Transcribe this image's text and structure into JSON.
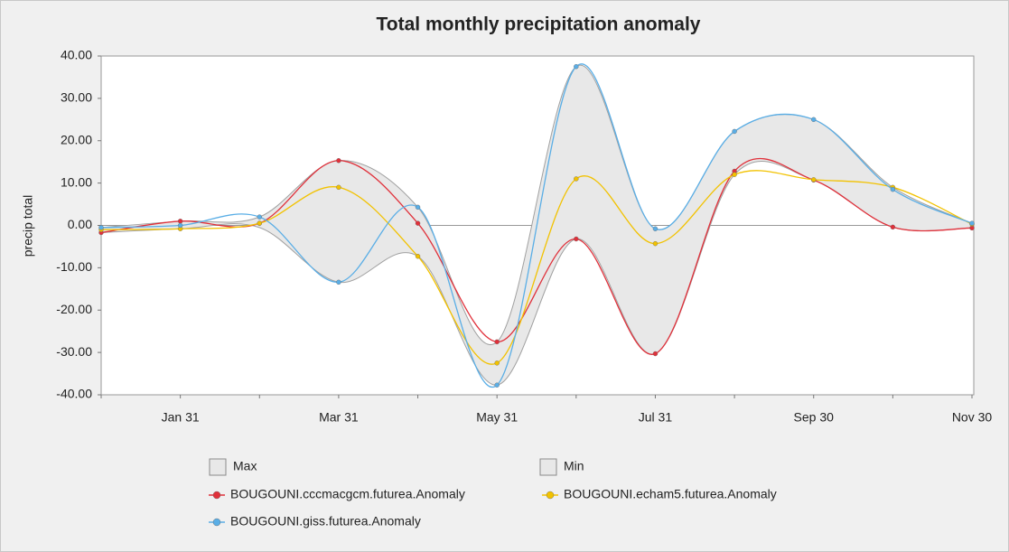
{
  "chart_data": {
    "type": "line",
    "title": "Total monthly precipitation anomaly",
    "y_label": "precip total",
    "categories": [
      null,
      "Jan 31",
      null,
      "Mar 31",
      null,
      "May 31",
      null,
      "Jul 31",
      null,
      "Sep 30",
      null,
      "Nov 30"
    ],
    "ylim": [
      -40,
      40
    ],
    "yticks": [
      {
        "value": -40,
        "label": "-40.00"
      },
      {
        "value": -30,
        "label": "-30.00"
      },
      {
        "value": -20,
        "label": "-20.00"
      },
      {
        "value": -10,
        "label": "-10.00"
      },
      {
        "value": 0,
        "label": "0.00"
      },
      {
        "value": 10,
        "label": "10.00"
      },
      {
        "value": 20,
        "label": "20.00"
      },
      {
        "value": 30,
        "label": "30.00"
      },
      {
        "value": 40,
        "label": "40.00"
      }
    ],
    "series": [
      {
        "name": "Max",
        "style": "band",
        "color": "#e8e8e8",
        "values": [
          -0.5,
          1.0,
          2.0,
          15.3,
          4.3,
          -27.5,
          37.5,
          -0.8,
          22.2,
          25.0,
          9.0,
          0.5
        ]
      },
      {
        "name": "Min",
        "style": "band",
        "color": "#e8e8e8",
        "values": [
          -1.7,
          -0.8,
          -0.5,
          -13.4,
          -7.3,
          -37.7,
          -3.2,
          -30.3,
          12.0,
          10.7,
          -0.4,
          -0.6
        ]
      },
      {
        "name": "BOUGOUNI.cccmacgcm.futurea.Anomaly",
        "color": "#e0303a",
        "values": [
          -1.7,
          1.0,
          0.5,
          15.3,
          0.5,
          -27.5,
          -3.2,
          -30.3,
          12.8,
          10.7,
          -0.4,
          -0.6
        ]
      },
      {
        "name": "BOUGOUNI.echam5.futurea.Anomaly",
        "color": "#f2c200",
        "values": [
          -1.0,
          -0.8,
          0.5,
          9.0,
          -7.3,
          -32.5,
          11.0,
          -4.3,
          12.0,
          10.8,
          9.0,
          0.3
        ]
      },
      {
        "name": "BOUGOUNI.giss.futurea.Anomaly",
        "color": "#5aaee6",
        "values": [
          -0.5,
          0.0,
          2.0,
          -13.4,
          4.3,
          -37.7,
          37.5,
          -0.8,
          22.2,
          25.0,
          8.5,
          0.5
        ]
      }
    ]
  }
}
